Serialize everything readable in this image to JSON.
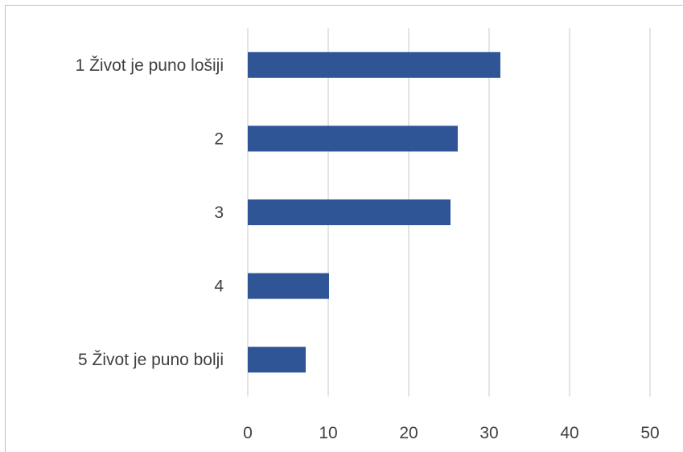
{
  "chart_data": {
    "type": "bar",
    "orientation": "horizontal",
    "categories": [
      "1 Život je puno lošiji",
      "2",
      "3",
      "4",
      "5 Život je puno bolji"
    ],
    "values": [
      31.4,
      26.1,
      25.2,
      10.1,
      7.2
    ],
    "xlim": [
      0,
      50
    ],
    "xticks": [
      "0",
      "10",
      "20",
      "30",
      "40",
      "50"
    ],
    "grid": true,
    "legend": "none",
    "colors": {
      "bar": "#2f5597",
      "grid": "#d9d9d9",
      "text": "#404040"
    }
  }
}
